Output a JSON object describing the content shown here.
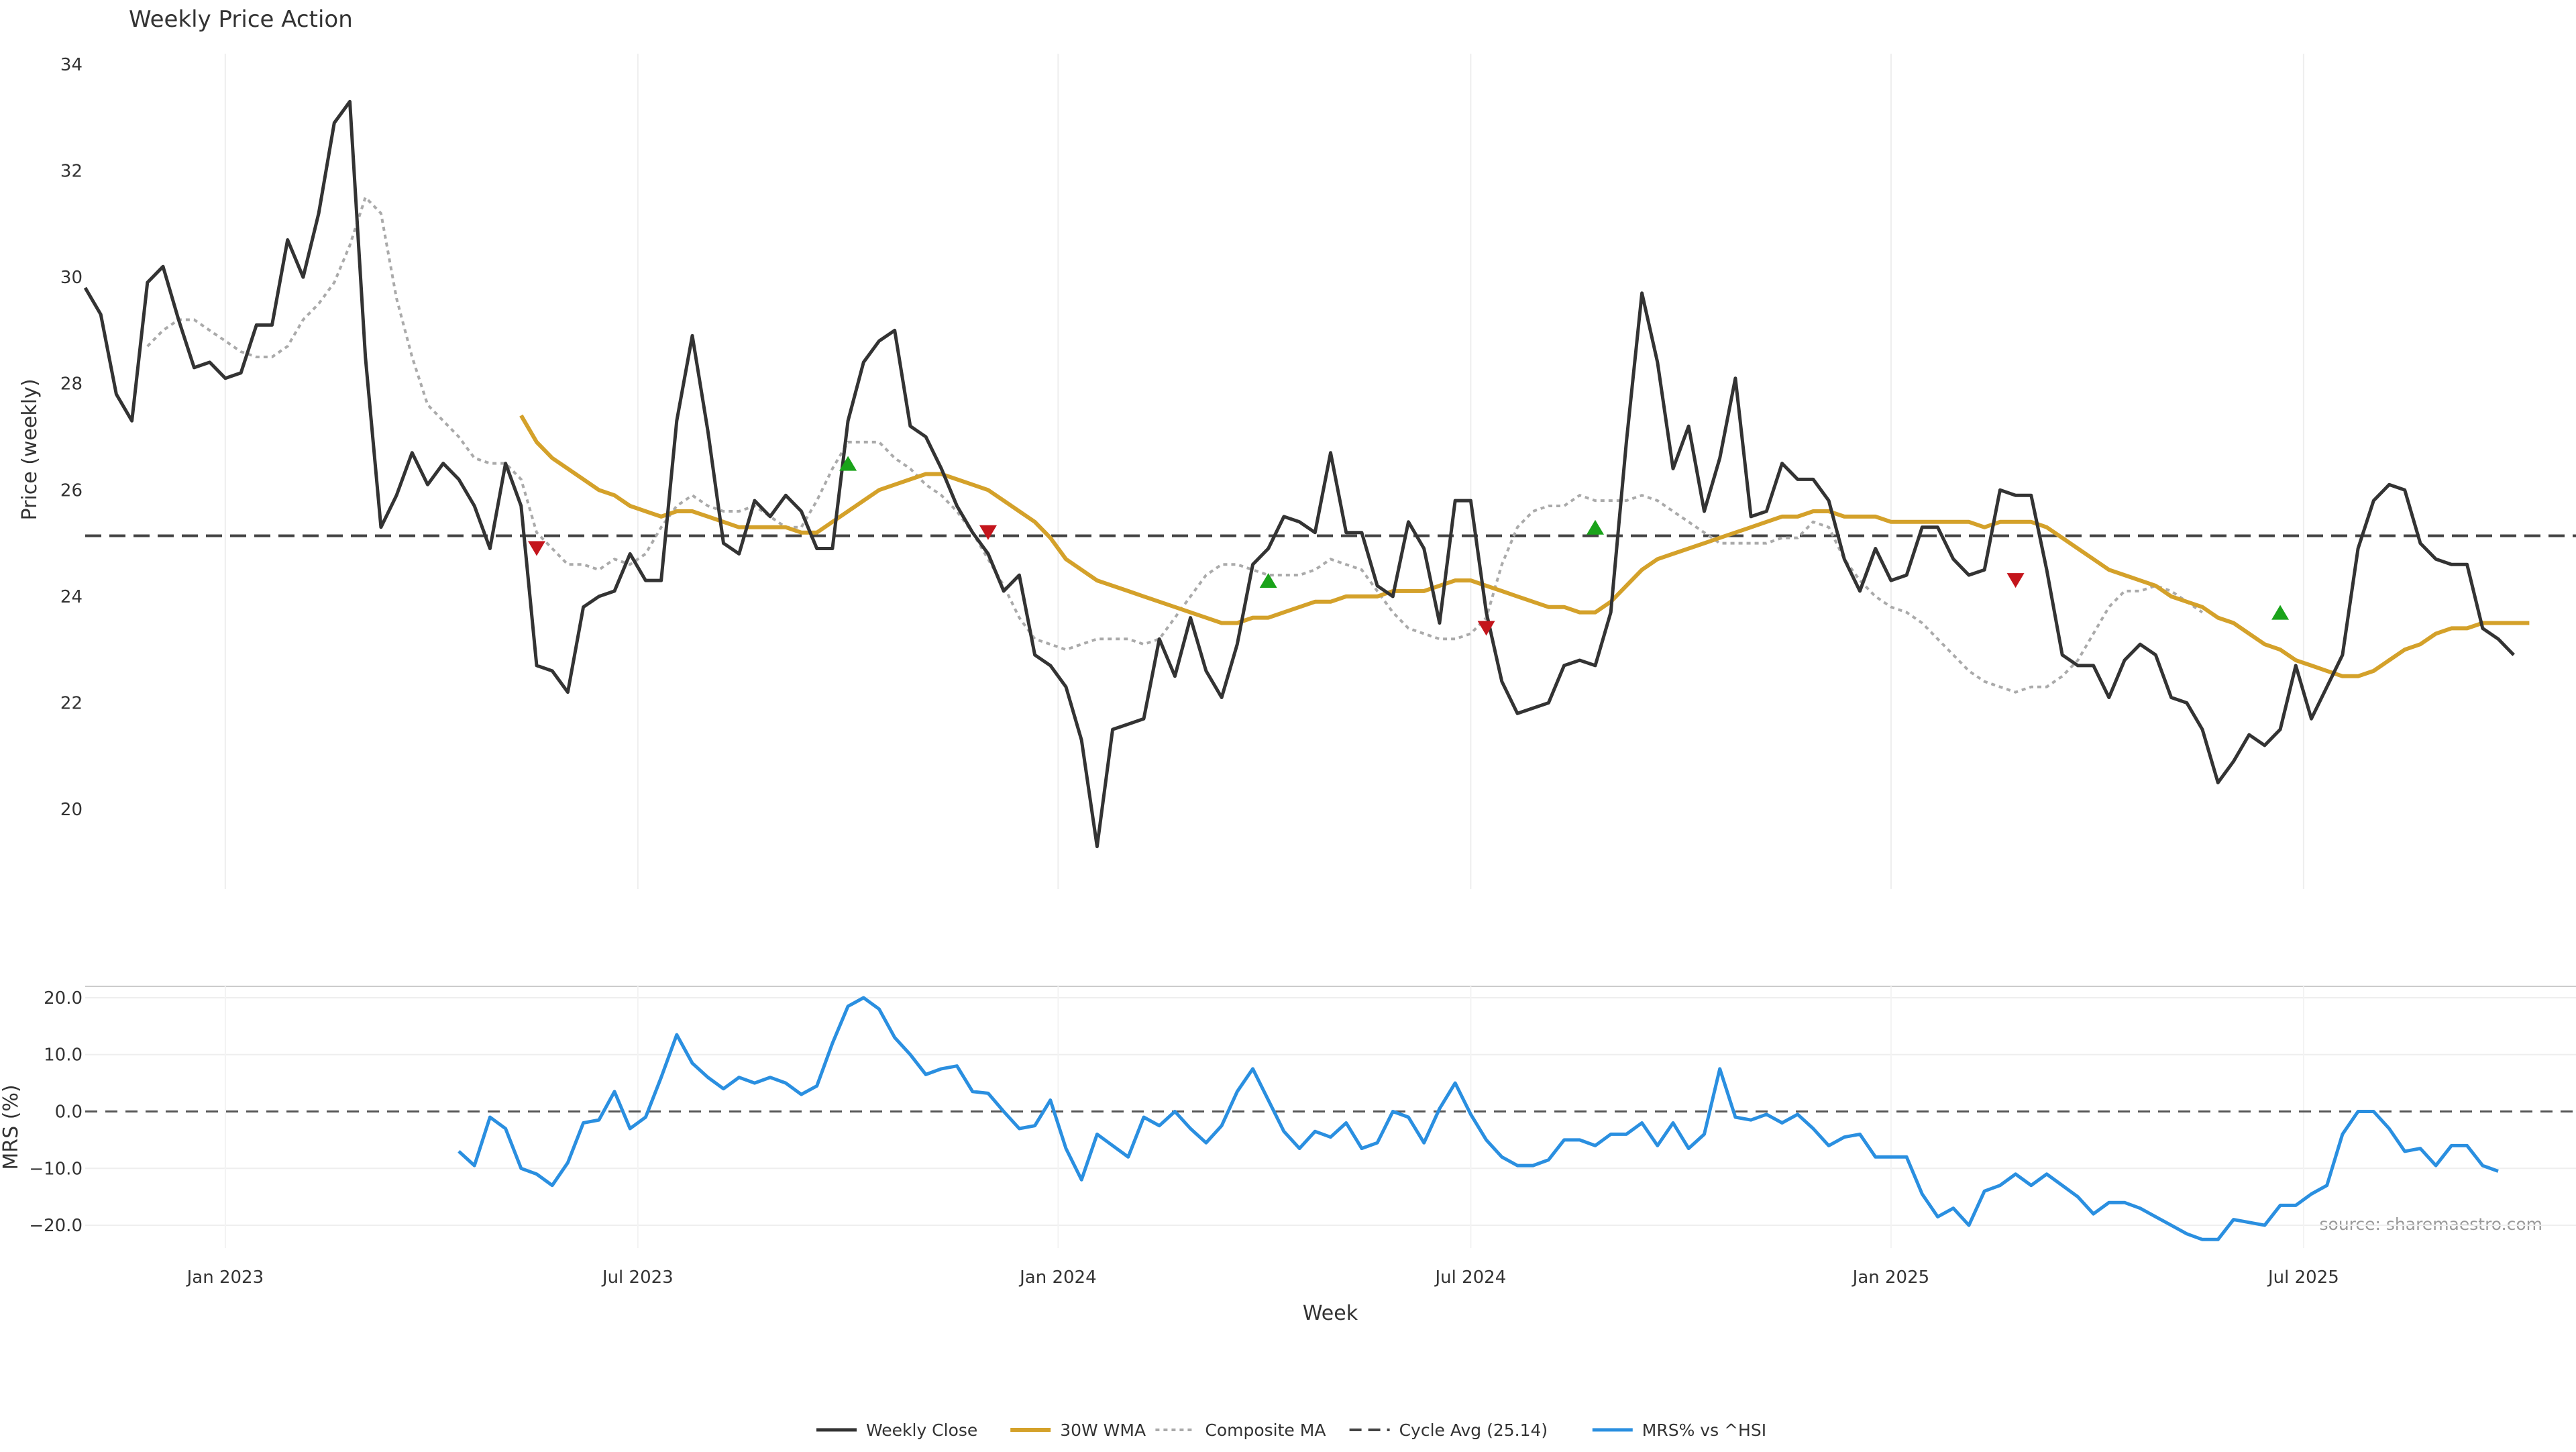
{
  "chart_data": {
    "type": "line",
    "title": "Weekly Price Action",
    "source_note": "source: sharemaestro.com",
    "x_tick_labels": [
      "Jan 2023",
      "Jul 2023",
      "Jan 2024",
      "Jul 2024",
      "Jan 2025",
      "Jul 2025"
    ],
    "xlabel": "Week",
    "legend_position": "bottom-center",
    "colors": {
      "weekly_close": "#333333",
      "wma": "#d4a12a",
      "composite_ma": "#aaaaaa",
      "cycle_avg": "#444444",
      "mrs": "#2a8fe0",
      "buy_marker": "#1aa31a",
      "sell_marker": "#c4151c"
    },
    "price_panel": {
      "ylabel": "Price (weekly)",
      "ylim": [
        18.5,
        34.2
      ],
      "yticks": [
        20,
        22,
        24,
        26,
        28,
        30,
        32,
        34
      ],
      "cycle_avg": 25.14,
      "x_range": [
        0,
        160
      ],
      "weekly_close": [
        29.8,
        29.3,
        27.8,
        27.3,
        29.9,
        30.2,
        29.2,
        28.3,
        28.4,
        28.1,
        28.2,
        29.1,
        29.1,
        30.7,
        30.0,
        31.2,
        32.9,
        33.3,
        28.5,
        25.3,
        25.9,
        26.7,
        26.1,
        26.5,
        26.2,
        25.7,
        24.9,
        26.5,
        25.7,
        22.7,
        22.6,
        22.2,
        23.8,
        24.0,
        24.1,
        24.8,
        24.3,
        24.3,
        27.3,
        28.9,
        27.1,
        25.0,
        24.8,
        25.8,
        25.5,
        25.9,
        25.6,
        24.9,
        24.9,
        27.3,
        28.4,
        28.8,
        29.0,
        27.2,
        27.0,
        26.4,
        25.7,
        25.2,
        24.8,
        24.1,
        24.4,
        22.9,
        22.7,
        22.3,
        21.3,
        19.3,
        21.5,
        21.6,
        21.7,
        23.2,
        22.5,
        23.6,
        22.6,
        22.1,
        23.1,
        24.6,
        24.9,
        25.5,
        25.4,
        25.2,
        26.7,
        25.2,
        25.2,
        24.2,
        24.0,
        25.4,
        24.9,
        23.5,
        25.8,
        25.8,
        23.7,
        22.4,
        21.8,
        21.9,
        22.0,
        22.7,
        22.8,
        22.7,
        23.7,
        26.9,
        29.7,
        28.4,
        26.4,
        27.2,
        25.6,
        26.6,
        28.1,
        25.5,
        25.6,
        26.5,
        26.2,
        26.2,
        25.8,
        24.7,
        24.1,
        24.9,
        24.3,
        24.4,
        25.3,
        25.3,
        24.7,
        24.4,
        24.5,
        26.0,
        25.9,
        25.9,
        24.5,
        22.9,
        22.7,
        22.7,
        22.1,
        22.8,
        23.1,
        22.9,
        22.1,
        22.0,
        21.5,
        20.5,
        20.9,
        21.4,
        21.2,
        21.5,
        22.7,
        21.7,
        22.3,
        22.9,
        24.9,
        25.8,
        26.1,
        26.0,
        25.0,
        24.7,
        24.6,
        24.6,
        23.4,
        23.2,
        22.9
      ],
      "wma": {
        "x_start": 28,
        "values": [
          27.4,
          26.9,
          26.6,
          26.4,
          26.2,
          26.0,
          25.9,
          25.7,
          25.6,
          25.5,
          25.6,
          25.6,
          25.5,
          25.4,
          25.3,
          25.3,
          25.3,
          25.3,
          25.2,
          25.2,
          25.4,
          25.6,
          25.8,
          26.0,
          26.1,
          26.2,
          26.3,
          26.3,
          26.2,
          26.1,
          26.0,
          25.8,
          25.6,
          25.4,
          25.1,
          24.7,
          24.5,
          24.3,
          24.2,
          24.1,
          24.0,
          23.9,
          23.8,
          23.7,
          23.6,
          23.5,
          23.5,
          23.6,
          23.6,
          23.7,
          23.8,
          23.9,
          23.9,
          24.0,
          24.0,
          24.0,
          24.1,
          24.1,
          24.1,
          24.2,
          24.3,
          24.3,
          24.2,
          24.1,
          24.0,
          23.9,
          23.8,
          23.8,
          23.7,
          23.7,
          23.9,
          24.2,
          24.5,
          24.7,
          24.8,
          24.9,
          25.0,
          25.1,
          25.2,
          25.3,
          25.4,
          25.5,
          25.5,
          25.6,
          25.6,
          25.5,
          25.5,
          25.5,
          25.4,
          25.4,
          25.4,
          25.4,
          25.4,
          25.4,
          25.3,
          25.4,
          25.4,
          25.4,
          25.3,
          25.1,
          24.9,
          24.7,
          24.5,
          24.4,
          24.3,
          24.2,
          24.0,
          23.9,
          23.8,
          23.6,
          23.5,
          23.3,
          23.1,
          23.0,
          22.8,
          22.7,
          22.6,
          22.5,
          22.5,
          22.6,
          22.8,
          23.0,
          23.1,
          23.3,
          23.4,
          23.4,
          23.5,
          23.5,
          23.5,
          23.5
        ]
      },
      "composite_ma": {
        "x_start": 4,
        "values": [
          28.7,
          29.0,
          29.2,
          29.2,
          29.0,
          28.8,
          28.6,
          28.5,
          28.5,
          28.7,
          29.2,
          29.5,
          29.9,
          30.6,
          31.5,
          31.2,
          29.6,
          28.5,
          27.6,
          27.3,
          27.0,
          26.6,
          26.5,
          26.5,
          26.2,
          25.2,
          24.9,
          24.6,
          24.6,
          24.5,
          24.7,
          24.6,
          24.8,
          25.3,
          25.7,
          25.9,
          25.7,
          25.6,
          25.6,
          25.7,
          25.5,
          25.3,
          25.3,
          25.8,
          26.4,
          26.9,
          26.9,
          26.9,
          26.6,
          26.4,
          26.1,
          25.9,
          25.6,
          25.2,
          24.7,
          24.2,
          23.6,
          23.2,
          23.1,
          23.0,
          23.1,
          23.2,
          23.2,
          23.2,
          23.1,
          23.2,
          23.6,
          24.0,
          24.4,
          24.6,
          24.6,
          24.5,
          24.4,
          24.4,
          24.4,
          24.5,
          24.7,
          24.6,
          24.5,
          24.1,
          23.7,
          23.4,
          23.3,
          23.2,
          23.2,
          23.3,
          23.6,
          24.6,
          25.3,
          25.6,
          25.7,
          25.7,
          25.9,
          25.8,
          25.8,
          25.8,
          25.9,
          25.8,
          25.6,
          25.4,
          25.2,
          25.0,
          25.0,
          25.0,
          25.0,
          25.1,
          25.1,
          25.4,
          25.3,
          24.7,
          24.3,
          24.0,
          23.8,
          23.7,
          23.5,
          23.2,
          22.9,
          22.6,
          22.4,
          22.3,
          22.2,
          22.3,
          22.3,
          22.5,
          22.8,
          23.3,
          23.8,
          24.1,
          24.1,
          24.2,
          24.1,
          23.9,
          23.7
        ]
      },
      "buy_signals": [
        {
          "x": 49,
          "y": 26.5
        },
        {
          "x": 76,
          "y": 24.3
        },
        {
          "x": 97,
          "y": 25.3
        },
        {
          "x": 141,
          "y": 23.7
        }
      ],
      "sell_signals": [
        {
          "x": 29,
          "y": 24.9
        },
        {
          "x": 58,
          "y": 25.2
        },
        {
          "x": 90,
          "y": 23.4
        },
        {
          "x": 124,
          "y": 24.3
        }
      ]
    },
    "mrs_panel": {
      "ylabel": "MRS (%)",
      "ylim": [
        -24,
        22
      ],
      "yticks": [
        -20,
        -10,
        0,
        10,
        20
      ],
      "ytick_labels": [
        "−20.0",
        "−10.0",
        "0.0",
        "10.0",
        "20.0"
      ],
      "zero_line": 0,
      "x_start": 24,
      "mrs": [
        -7,
        -9.5,
        -1,
        -3,
        -10,
        -11,
        -13,
        -9,
        -2,
        -1.5,
        3.5,
        -3,
        -1,
        6,
        13.5,
        8.5,
        6,
        4,
        6,
        5,
        6,
        5,
        3,
        4.5,
        12,
        18.5,
        20,
        18,
        13,
        10,
        6.5,
        7.5,
        8,
        3.5,
        3.2,
        0,
        -3,
        -2.5,
        2,
        -6.5,
        -12,
        -4,
        -6,
        -8,
        -1,
        -2.5,
        0,
        -3,
        -5.5,
        -2.5,
        3.5,
        7.5,
        2,
        -3.5,
        -6.5,
        -3.5,
        -4.5,
        -2,
        -6.5,
        -5.5,
        0,
        -1,
        -5.5,
        0.5,
        5,
        -0.5,
        -5,
        -8,
        -9.5,
        -9.5,
        -8.5,
        -5,
        -5,
        -6,
        -4,
        -4,
        -2,
        -6,
        -2,
        -6.5,
        -4,
        7.5,
        -1,
        -1.5,
        -0.5,
        -2,
        -0.5,
        -3,
        -6,
        -4.5,
        -4,
        -8,
        -8,
        -8,
        -14.5,
        -18.5,
        -17,
        -20,
        -14,
        -13,
        -11,
        -13,
        -11,
        -13,
        -15,
        -18,
        -16,
        -16,
        -17,
        -18.5,
        -20,
        -21.5,
        -22.5,
        -22.5,
        -19,
        -19.5,
        -20,
        -16.5,
        -16.5,
        -14.5,
        -13,
        -4,
        0,
        0,
        -3,
        -7,
        -6.5,
        -9.5,
        -6,
        -6,
        -9.5,
        -10.5
      ]
    },
    "legend": [
      {
        "key": "weekly_close",
        "label": "Weekly Close",
        "style": "solid"
      },
      {
        "key": "wma",
        "label": "30W WMA",
        "style": "solid"
      },
      {
        "key": "composite_ma",
        "label": "Composite MA",
        "style": "dotted"
      },
      {
        "key": "cycle_avg",
        "label": "Cycle Avg (25.14)",
        "style": "dashed"
      },
      {
        "key": "mrs",
        "label": "MRS% vs ^HSI",
        "style": "solid"
      }
    ]
  }
}
